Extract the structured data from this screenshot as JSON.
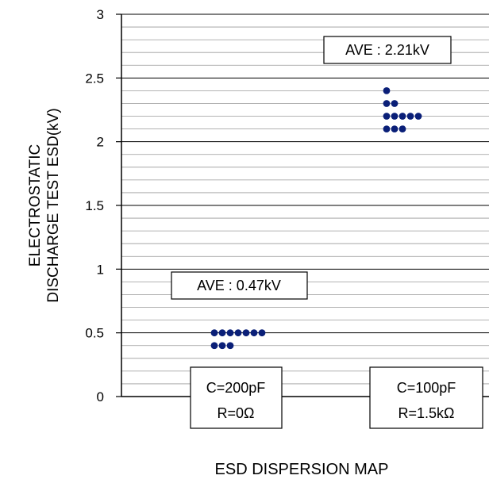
{
  "chart_data": {
    "type": "scatter",
    "title": "",
    "xlabel": "ESD DISPERSION MAP",
    "ylabel_lines": [
      "ELECTROSTATIC",
      "DISCHARGE TEST ESD(kV)"
    ],
    "ylim": [
      0,
      3
    ],
    "yticks": [
      "0",
      "0.5",
      "1",
      "1.5",
      "2",
      "2.5",
      "3"
    ],
    "grid": true,
    "marker_color": "#0a1f78",
    "groups": [
      {
        "labels": [
          "C=200pF",
          "R=0Ω"
        ],
        "average_label": "AVE : 0.47kV",
        "points": [
          {
            "y": 0.5,
            "count": 7
          },
          {
            "y": 0.4,
            "count": 3
          }
        ]
      },
      {
        "labels": [
          "C=100pF",
          "R=1.5kΩ"
        ],
        "average_label": "AVE : 2.21kV",
        "points": [
          {
            "y": 2.4,
            "count": 1
          },
          {
            "y": 2.3,
            "count": 2
          },
          {
            "y": 2.2,
            "count": 5
          },
          {
            "y": 2.1,
            "count": 3
          }
        ]
      }
    ]
  }
}
